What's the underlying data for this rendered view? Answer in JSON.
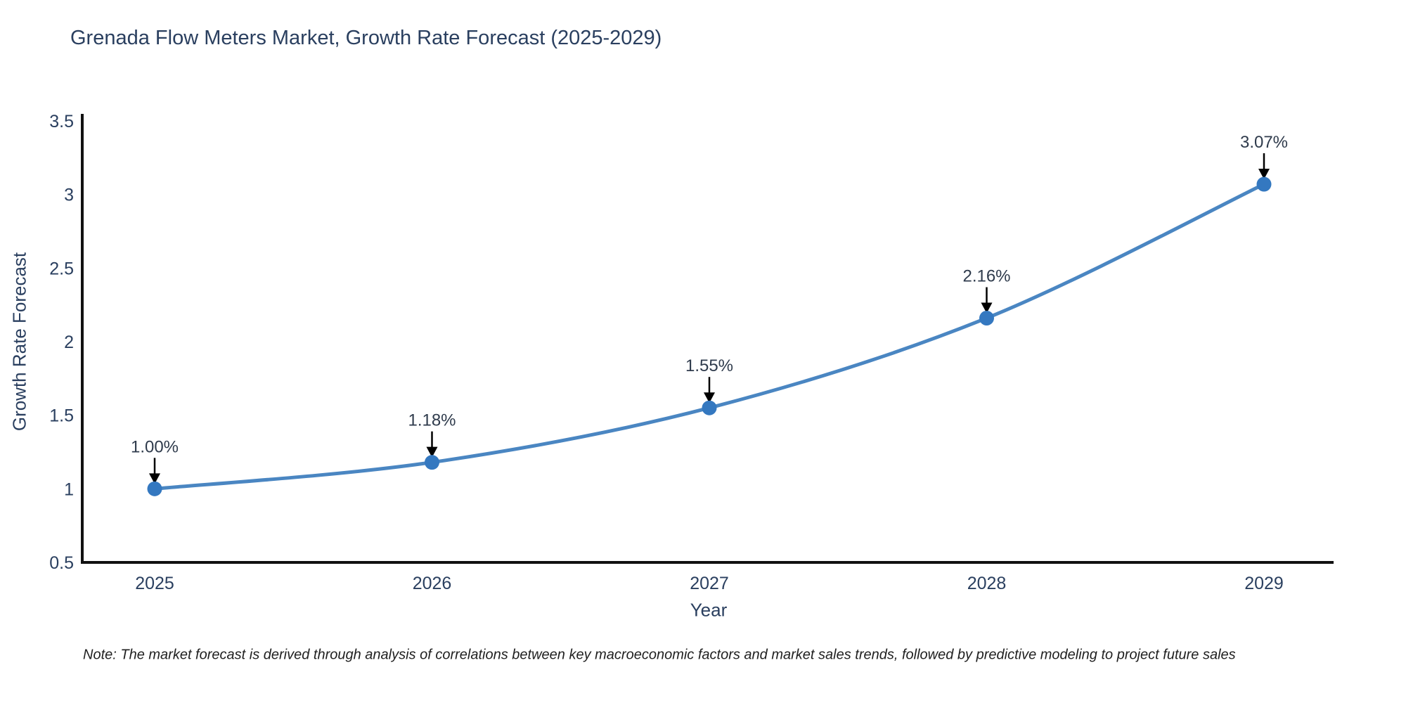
{
  "chart_data": {
    "type": "line",
    "title": "Grenada Flow Meters Market, Growth Rate Forecast (2025-2029)",
    "xlabel": "Year",
    "ylabel": "Growth Rate Forecast",
    "x": [
      2025,
      2026,
      2027,
      2028,
      2029
    ],
    "y": [
      1.0,
      1.18,
      1.55,
      2.16,
      3.07
    ],
    "point_labels": [
      "1.00%",
      "1.18%",
      "1.55%",
      "2.16%",
      "3.07%"
    ],
    "xticks": [
      "2025",
      "2026",
      "2027",
      "2028",
      "2029"
    ],
    "yticks": [
      "0.5",
      "1",
      "1.5",
      "2",
      "2.5",
      "3",
      "3.5"
    ],
    "ytick_values": [
      0.5,
      1,
      1.5,
      2,
      2.5,
      3,
      3.5
    ],
    "ylim": [
      0.5,
      3.5
    ],
    "grid": false,
    "legend": "none",
    "line_color": "#4a86c2",
    "marker_color": "#3478c0",
    "axis_color": "#111111",
    "text_color": "#2a3f5f",
    "annotation_arrow_color": "#000000"
  },
  "note": {
    "text": "Note: The market forecast is derived through analysis of correlations between key macroeconomic factors and market sales trends, followed by predictive modeling to project future sales"
  }
}
